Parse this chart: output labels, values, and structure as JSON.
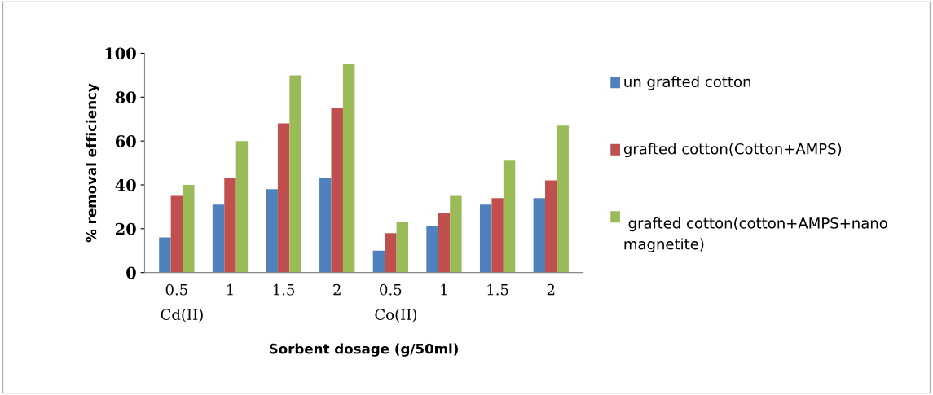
{
  "chart_data": {
    "type": "bar",
    "xlabel": "Sorbent dosage (g/50ml)",
    "ylabel": "% removal efficiency",
    "categories": [
      "0.5",
      "1",
      "1.5",
      "2",
      "0.5",
      "1",
      "1.5",
      "2"
    ],
    "series": [
      {
        "name": "un grafted cotton",
        "color": "#4f81bd",
        "values": [
          16,
          31,
          38,
          43,
          10,
          21,
          31,
          34
        ]
      },
      {
        "name": "grafted cotton(Cotton+AMPS)",
        "color": "#c0504d",
        "values": [
          35,
          43,
          68,
          75,
          18,
          27,
          34,
          42
        ]
      },
      {
        "name": " grafted cotton(cotton+AMPS+nano magnetite)",
        "color": "#9bbb59",
        "values": [
          40,
          60,
          90,
          95,
          23,
          35,
          51,
          67
        ]
      }
    ],
    "annotations": [
      "Cd(II)",
      "Co(II)"
    ],
    "ylim": [
      0,
      100
    ],
    "yticks": [
      0,
      20,
      40,
      60,
      80,
      100
    ],
    "grid": false,
    "legend": "right"
  }
}
